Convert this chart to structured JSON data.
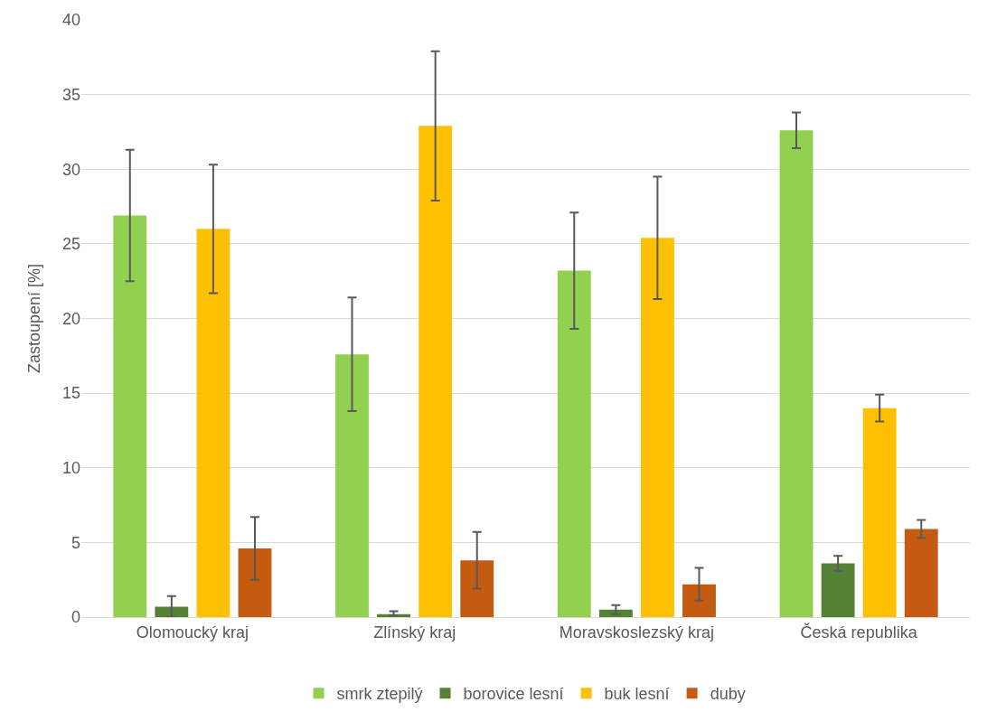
{
  "chart_data": {
    "type": "bar",
    "ylabel": "Zastoupení [%]",
    "categories": [
      "Olomoucký kraj",
      "Zlínský kraj",
      "Moravskoslezský kraj",
      "Česká republika"
    ],
    "series": [
      {
        "name": "smrk ztepilý",
        "color": "#92d050",
        "values": [
          26.9,
          17.6,
          23.2,
          32.6
        ],
        "errors": [
          4.4,
          3.8,
          3.9,
          1.2
        ]
      },
      {
        "name": "borovice lesní",
        "color": "#548235",
        "values": [
          0.7,
          0.2,
          0.5,
          3.6
        ],
        "errors": [
          0.7,
          [
            0.1,
            0.2
          ],
          0.3,
          0.5
        ]
      },
      {
        "name": "buk lesní",
        "color": "#ffc000",
        "values": [
          26.0,
          32.9,
          25.4,
          14.0
        ],
        "errors": [
          4.3,
          5.0,
          4.1,
          0.9
        ]
      },
      {
        "name": "duby",
        "color": "#c55a11",
        "values": [
          4.6,
          3.8,
          2.2,
          5.9
        ],
        "errors": [
          2.1,
          1.9,
          1.1,
          0.6
        ]
      }
    ],
    "ylim": [
      0,
      40
    ],
    "yticks": [
      0,
      5,
      10,
      15,
      20,
      25,
      30,
      35,
      40
    ],
    "grid": "y",
    "legend": "bottom"
  }
}
